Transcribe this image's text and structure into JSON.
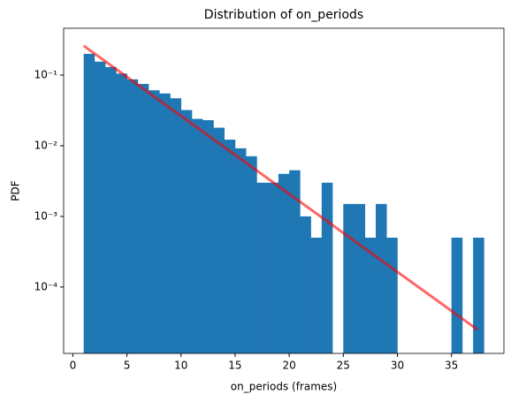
{
  "chart_data": {
    "type": "histogram",
    "title": "Distribution of on_periods",
    "xlabel": "on_periods (frames)",
    "ylabel": "PDF",
    "bins": [
      1,
      2,
      3,
      4,
      5,
      6,
      7,
      8,
      9,
      10,
      11,
      12,
      13,
      14,
      15,
      16,
      17,
      18,
      19,
      20,
      21,
      22,
      23,
      24,
      25,
      26,
      27,
      28,
      29,
      30,
      31,
      32,
      33,
      34,
      35,
      36,
      37,
      38
    ],
    "values": [
      0.2,
      0.155,
      0.13,
      0.105,
      0.087,
      0.075,
      0.061,
      0.055,
      0.047,
      0.032,
      0.024,
      0.023,
      0.018,
      0.0122,
      0.0092,
      0.0071,
      0.003,
      0.003,
      0.004,
      0.0045,
      0.001,
      0.0005,
      0.003,
      0,
      0.0015,
      0.0015,
      0.0005,
      0.0015,
      0.0005,
      0,
      0,
      0,
      0,
      0,
      0.0005,
      0,
      0.0005
    ],
    "color": "#1f77b4",
    "log_y": true,
    "xlim": [
      -0.85,
      39.85
    ],
    "ylim": [
      1.15e-05,
      0.46
    ],
    "xticks": [
      0,
      5,
      10,
      15,
      20,
      25,
      30,
      35
    ],
    "yticks": [
      {
        "value": 0.0001,
        "label": "10⁻⁴"
      },
      {
        "value": 0.001,
        "label": "10⁻³"
      },
      {
        "value": 0.01,
        "label": "10⁻²"
      },
      {
        "value": 0.1,
        "label": "10⁻¹"
      }
    ],
    "overlays": [
      {
        "type": "line",
        "x": [
          1,
          37.4
        ],
        "values": [
          0.26,
          2.5e-05
        ],
        "color": "#ff0000",
        "alpha": 0.6
      }
    ]
  }
}
